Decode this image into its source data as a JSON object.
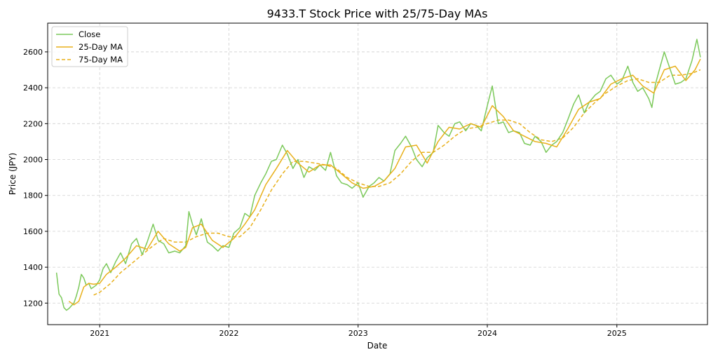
{
  "chart_data": {
    "type": "line",
    "title": "9433.T Stock Price with 25/75-Day MAs",
    "xlabel": "Date",
    "ylabel": "Price (JPY)",
    "x_range": [
      "2020-08-07",
      "2025-09-14"
    ],
    "ylim": [
      1080,
      2760
    ],
    "x_ticks": [
      {
        "label": "2021",
        "date": "2021-01-01"
      },
      {
        "label": "2022",
        "date": "2022-01-01"
      },
      {
        "label": "2023",
        "date": "2023-01-01"
      },
      {
        "label": "2024",
        "date": "2024-01-01"
      },
      {
        "label": "2025",
        "date": "2025-01-01"
      }
    ],
    "y_ticks": [
      1200,
      1400,
      1600,
      1800,
      2000,
      2200,
      2400,
      2600
    ],
    "grid": true,
    "legend_position": "top-left",
    "series": [
      {
        "name": "Close",
        "color": "#7cc95b",
        "style": "solid",
        "points": [
          [
            "2020-09-01",
            1370
          ],
          [
            "2020-09-08",
            1250
          ],
          [
            "2020-09-15",
            1230
          ],
          [
            "2020-09-22",
            1175
          ],
          [
            "2020-09-29",
            1160
          ],
          [
            "2020-10-06",
            1170
          ],
          [
            "2020-10-13",
            1185
          ],
          [
            "2020-10-20",
            1200
          ],
          [
            "2020-10-27",
            1240
          ],
          [
            "2020-11-03",
            1290
          ],
          [
            "2020-11-10",
            1360
          ],
          [
            "2020-11-17",
            1340
          ],
          [
            "2020-11-24",
            1300
          ],
          [
            "2020-12-01",
            1310
          ],
          [
            "2020-12-08",
            1280
          ],
          [
            "2020-12-15",
            1290
          ],
          [
            "2020-12-22",
            1300
          ],
          [
            "2021-01-01",
            1330
          ],
          [
            "2021-01-10",
            1390
          ],
          [
            "2021-01-20",
            1420
          ],
          [
            "2021-02-01",
            1370
          ],
          [
            "2021-02-15",
            1430
          ],
          [
            "2021-03-01",
            1480
          ],
          [
            "2021-03-15",
            1420
          ],
          [
            "2021-04-01",
            1530
          ],
          [
            "2021-04-15",
            1560
          ],
          [
            "2021-05-01",
            1470
          ],
          [
            "2021-05-15",
            1540
          ],
          [
            "2021-06-01",
            1640
          ],
          [
            "2021-06-15",
            1550
          ],
          [
            "2021-07-01",
            1530
          ],
          [
            "2021-07-15",
            1480
          ],
          [
            "2021-08-01",
            1490
          ],
          [
            "2021-08-15",
            1480
          ],
          [
            "2021-09-01",
            1520
          ],
          [
            "2021-09-10",
            1710
          ],
          [
            "2021-09-20",
            1640
          ],
          [
            "2021-10-01",
            1580
          ],
          [
            "2021-10-15",
            1670
          ],
          [
            "2021-11-01",
            1540
          ],
          [
            "2021-11-15",
            1520
          ],
          [
            "2021-12-01",
            1490
          ],
          [
            "2021-12-15",
            1520
          ],
          [
            "2022-01-01",
            1510
          ],
          [
            "2022-01-15",
            1590
          ],
          [
            "2022-02-01",
            1620
          ],
          [
            "2022-02-15",
            1700
          ],
          [
            "2022-03-01",
            1680
          ],
          [
            "2022-03-15",
            1800
          ],
          [
            "2022-04-01",
            1870
          ],
          [
            "2022-04-15",
            1920
          ],
          [
            "2022-05-01",
            1990
          ],
          [
            "2022-05-15",
            2000
          ],
          [
            "2022-06-01",
            2080
          ],
          [
            "2022-06-15",
            2030
          ],
          [
            "2022-07-01",
            1950
          ],
          [
            "2022-07-15",
            2000
          ],
          [
            "2022-08-01",
            1900
          ],
          [
            "2022-08-15",
            1960
          ],
          [
            "2022-09-01",
            1940
          ],
          [
            "2022-09-15",
            1970
          ],
          [
            "2022-10-01",
            1940
          ],
          [
            "2022-10-15",
            2040
          ],
          [
            "2022-11-01",
            1910
          ],
          [
            "2022-11-15",
            1870
          ],
          [
            "2022-12-01",
            1860
          ],
          [
            "2022-12-15",
            1840
          ],
          [
            "2023-01-01",
            1870
          ],
          [
            "2023-01-15",
            1790
          ],
          [
            "2023-02-01",
            1850
          ],
          [
            "2023-02-15",
            1870
          ],
          [
            "2023-03-01",
            1900
          ],
          [
            "2023-03-15",
            1880
          ],
          [
            "2023-04-01",
            1920
          ],
          [
            "2023-04-15",
            2050
          ],
          [
            "2023-05-01",
            2090
          ],
          [
            "2023-05-15",
            2130
          ],
          [
            "2023-06-01",
            2070
          ],
          [
            "2023-06-15",
            2000
          ],
          [
            "2023-07-01",
            1960
          ],
          [
            "2023-07-15",
            2010
          ],
          [
            "2023-08-01",
            2040
          ],
          [
            "2023-08-15",
            2190
          ],
          [
            "2023-09-01",
            2150
          ],
          [
            "2023-09-15",
            2130
          ],
          [
            "2023-10-01",
            2200
          ],
          [
            "2023-10-15",
            2210
          ],
          [
            "2023-11-01",
            2160
          ],
          [
            "2023-11-15",
            2200
          ],
          [
            "2023-12-01",
            2190
          ],
          [
            "2023-12-15",
            2160
          ],
          [
            "2024-01-01",
            2300
          ],
          [
            "2024-01-15",
            2410
          ],
          [
            "2024-02-01",
            2200
          ],
          [
            "2024-02-15",
            2210
          ],
          [
            "2024-03-01",
            2150
          ],
          [
            "2024-03-15",
            2160
          ],
          [
            "2024-04-01",
            2150
          ],
          [
            "2024-04-15",
            2090
          ],
          [
            "2024-05-01",
            2080
          ],
          [
            "2024-05-15",
            2130
          ],
          [
            "2024-06-01",
            2100
          ],
          [
            "2024-06-15",
            2040
          ],
          [
            "2024-07-01",
            2080
          ],
          [
            "2024-07-15",
            2100
          ],
          [
            "2024-08-01",
            2150
          ],
          [
            "2024-08-15",
            2220
          ],
          [
            "2024-09-01",
            2310
          ],
          [
            "2024-09-15",
            2360
          ],
          [
            "2024-10-01",
            2260
          ],
          [
            "2024-10-15",
            2320
          ],
          [
            "2024-11-01",
            2360
          ],
          [
            "2024-11-15",
            2380
          ],
          [
            "2024-12-01",
            2450
          ],
          [
            "2024-12-15",
            2470
          ],
          [
            "2025-01-01",
            2420
          ],
          [
            "2025-01-15",
            2440
          ],
          [
            "2025-02-01",
            2520
          ],
          [
            "2025-02-15",
            2430
          ],
          [
            "2025-03-01",
            2380
          ],
          [
            "2025-03-15",
            2400
          ],
          [
            "2025-04-01",
            2340
          ],
          [
            "2025-04-10",
            2290
          ],
          [
            "2025-04-20",
            2420
          ],
          [
            "2025-05-01",
            2500
          ],
          [
            "2025-05-15",
            2600
          ],
          [
            "2025-06-01",
            2500
          ],
          [
            "2025-06-15",
            2420
          ],
          [
            "2025-07-01",
            2430
          ],
          [
            "2025-07-15",
            2450
          ],
          [
            "2025-08-01",
            2550
          ],
          [
            "2025-08-15",
            2670
          ],
          [
            "2025-08-25",
            2570
          ]
        ]
      },
      {
        "name": "25-Day MA",
        "color": "#e8b01a",
        "style": "solid",
        "points": [
          [
            "2020-10-06",
            1210
          ],
          [
            "2020-10-20",
            1190
          ],
          [
            "2020-11-03",
            1210
          ],
          [
            "2020-11-17",
            1290
          ],
          [
            "2020-12-01",
            1310
          ],
          [
            "2020-12-15",
            1305
          ],
          [
            "2021-01-01",
            1310
          ],
          [
            "2021-01-20",
            1360
          ],
          [
            "2021-02-15",
            1400
          ],
          [
            "2021-03-15",
            1450
          ],
          [
            "2021-04-15",
            1520
          ],
          [
            "2021-05-15",
            1500
          ],
          [
            "2021-06-15",
            1600
          ],
          [
            "2021-07-15",
            1530
          ],
          [
            "2021-08-15",
            1490
          ],
          [
            "2021-09-01",
            1510
          ],
          [
            "2021-09-20",
            1620
          ],
          [
            "2021-10-15",
            1640
          ],
          [
            "2021-11-01",
            1590
          ],
          [
            "2021-11-15",
            1550
          ],
          [
            "2021-12-15",
            1510
          ],
          [
            "2022-01-15",
            1560
          ],
          [
            "2022-02-15",
            1640
          ],
          [
            "2022-03-15",
            1720
          ],
          [
            "2022-04-15",
            1860
          ],
          [
            "2022-05-15",
            1950
          ],
          [
            "2022-06-15",
            2050
          ],
          [
            "2022-07-15",
            1980
          ],
          [
            "2022-08-15",
            1930
          ],
          [
            "2022-09-15",
            1970
          ],
          [
            "2022-10-15",
            1970
          ],
          [
            "2022-11-15",
            1920
          ],
          [
            "2022-12-15",
            1870
          ],
          [
            "2023-01-15",
            1840
          ],
          [
            "2023-02-15",
            1850
          ],
          [
            "2023-03-15",
            1880
          ],
          [
            "2023-04-15",
            1950
          ],
          [
            "2023-05-15",
            2070
          ],
          [
            "2023-06-15",
            2080
          ],
          [
            "2023-07-15",
            1980
          ],
          [
            "2023-08-15",
            2100
          ],
          [
            "2023-09-15",
            2180
          ],
          [
            "2023-10-15",
            2170
          ],
          [
            "2023-11-15",
            2200
          ],
          [
            "2023-12-15",
            2180
          ],
          [
            "2024-01-15",
            2300
          ],
          [
            "2024-02-15",
            2240
          ],
          [
            "2024-03-15",
            2160
          ],
          [
            "2024-04-15",
            2130
          ],
          [
            "2024-05-15",
            2100
          ],
          [
            "2024-06-15",
            2090
          ],
          [
            "2024-07-15",
            2070
          ],
          [
            "2024-08-15",
            2170
          ],
          [
            "2024-09-15",
            2280
          ],
          [
            "2024-10-15",
            2320
          ],
          [
            "2024-11-15",
            2340
          ],
          [
            "2024-12-15",
            2420
          ],
          [
            "2025-01-15",
            2450
          ],
          [
            "2025-02-15",
            2470
          ],
          [
            "2025-03-15",
            2410
          ],
          [
            "2025-04-15",
            2370
          ],
          [
            "2025-05-15",
            2500
          ],
          [
            "2025-06-15",
            2520
          ],
          [
            "2025-07-15",
            2440
          ],
          [
            "2025-08-10",
            2500
          ],
          [
            "2025-08-25",
            2560
          ]
        ]
      },
      {
        "name": "75-Day MA",
        "color": "#e8b01a",
        "style": "dashed",
        "points": [
          [
            "2020-12-15",
            1245
          ],
          [
            "2021-01-01",
            1260
          ],
          [
            "2021-02-01",
            1310
          ],
          [
            "2021-03-01",
            1370
          ],
          [
            "2021-04-01",
            1420
          ],
          [
            "2021-05-01",
            1470
          ],
          [
            "2021-06-01",
            1520
          ],
          [
            "2021-07-01",
            1560
          ],
          [
            "2021-08-01",
            1540
          ],
          [
            "2021-09-01",
            1540
          ],
          [
            "2021-10-01",
            1570
          ],
          [
            "2021-11-01",
            1590
          ],
          [
            "2021-12-01",
            1590
          ],
          [
            "2022-01-01",
            1570
          ],
          [
            "2022-02-01",
            1570
          ],
          [
            "2022-03-01",
            1620
          ],
          [
            "2022-04-01",
            1720
          ],
          [
            "2022-05-01",
            1830
          ],
          [
            "2022-06-01",
            1920
          ],
          [
            "2022-07-01",
            1990
          ],
          [
            "2022-08-01",
            1990
          ],
          [
            "2022-09-01",
            1980
          ],
          [
            "2022-10-01",
            1970
          ],
          [
            "2022-11-01",
            1950
          ],
          [
            "2022-12-01",
            1900
          ],
          [
            "2023-01-01",
            1870
          ],
          [
            "2023-02-01",
            1850
          ],
          [
            "2023-03-01",
            1850
          ],
          [
            "2023-04-01",
            1870
          ],
          [
            "2023-05-01",
            1920
          ],
          [
            "2023-06-01",
            1990
          ],
          [
            "2023-07-01",
            2040
          ],
          [
            "2023-08-01",
            2040
          ],
          [
            "2023-09-01",
            2080
          ],
          [
            "2023-10-01",
            2130
          ],
          [
            "2023-11-01",
            2170
          ],
          [
            "2023-12-01",
            2180
          ],
          [
            "2024-01-01",
            2200
          ],
          [
            "2024-02-01",
            2220
          ],
          [
            "2024-03-01",
            2220
          ],
          [
            "2024-04-01",
            2200
          ],
          [
            "2024-05-01",
            2150
          ],
          [
            "2024-06-01",
            2110
          ],
          [
            "2024-07-01",
            2100
          ],
          [
            "2024-08-01",
            2120
          ],
          [
            "2024-09-01",
            2180
          ],
          [
            "2024-10-01",
            2260
          ],
          [
            "2024-11-01",
            2320
          ],
          [
            "2024-12-01",
            2370
          ],
          [
            "2025-01-01",
            2410
          ],
          [
            "2025-02-01",
            2440
          ],
          [
            "2025-03-01",
            2450
          ],
          [
            "2025-04-01",
            2430
          ],
          [
            "2025-05-01",
            2430
          ],
          [
            "2025-06-01",
            2470
          ],
          [
            "2025-07-01",
            2470
          ],
          [
            "2025-08-01",
            2480
          ],
          [
            "2025-08-25",
            2500
          ]
        ]
      }
    ]
  }
}
